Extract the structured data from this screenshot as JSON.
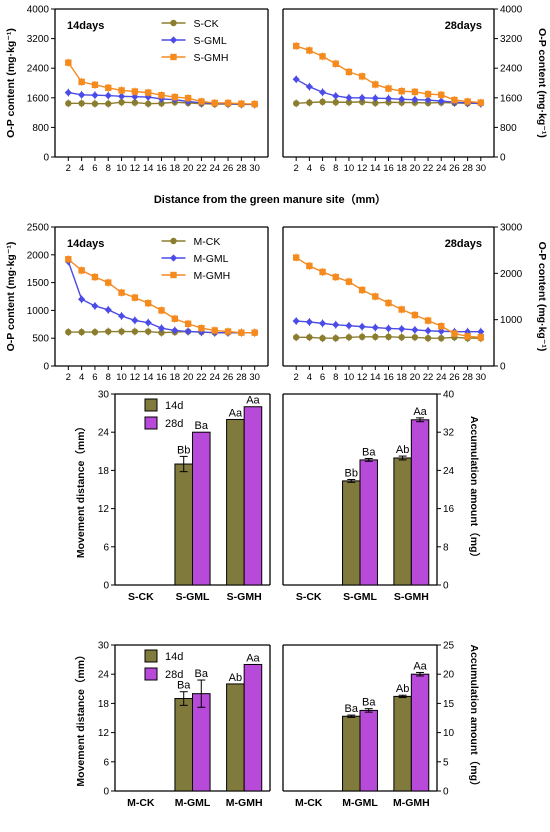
{
  "figure": {
    "shared_xlabel": "Distance from the green manure site（mm）",
    "colors": {
      "ck": "#8b7d2e",
      "gml": "#4b4be8",
      "gmh": "#f58a1e",
      "bar14": "#807a3c",
      "bar28": "#b84ad9"
    }
  },
  "chart_data": [
    {
      "type": "line",
      "id": "line-s14",
      "title": "14days",
      "ylabel": "O-P content (mg·kg⁻¹)",
      "x": [
        2,
        4,
        6,
        8,
        10,
        12,
        14,
        16,
        18,
        20,
        22,
        24,
        26,
        28,
        30
      ],
      "xticks": [
        "2",
        "4",
        "6",
        "8",
        "10",
        "12",
        "14",
        "16",
        "18",
        "20",
        "22",
        "24",
        "26",
        "28",
        "30"
      ],
      "ylim": [
        0,
        4000
      ],
      "yticks": [
        "0",
        "800",
        "1600",
        "2400",
        "3200",
        "4000"
      ],
      "legend": "top-right",
      "series": [
        {
          "name": "S-CK",
          "marker": "circle",
          "values": [
            1450,
            1450,
            1440,
            1440,
            1480,
            1470,
            1440,
            1450,
            1480,
            1460,
            1440,
            1430,
            1430,
            1420,
            1420
          ]
        },
        {
          "name": "S-GML",
          "marker": "diamond",
          "values": [
            1740,
            1680,
            1670,
            1660,
            1640,
            1630,
            1620,
            1570,
            1550,
            1500,
            1460,
            1450,
            1440,
            1430,
            1420
          ]
        },
        {
          "name": "S-GMH",
          "marker": "square",
          "values": [
            2550,
            2030,
            1950,
            1870,
            1800,
            1770,
            1740,
            1670,
            1620,
            1590,
            1500,
            1460,
            1460,
            1440,
            1430
          ]
        }
      ]
    },
    {
      "type": "line",
      "id": "line-s28",
      "title": "28days",
      "ylabel": "O-P content (mg·kg⁻¹)",
      "x": [
        2,
        4,
        6,
        8,
        10,
        12,
        14,
        16,
        18,
        20,
        22,
        24,
        26,
        28,
        30
      ],
      "xticks": [
        "2",
        "4",
        "6",
        "8",
        "10",
        "12",
        "14",
        "16",
        "18",
        "20",
        "22",
        "24",
        "26",
        "28",
        "30"
      ],
      "ylim": [
        0,
        4000
      ],
      "yticks": [
        "0",
        "800",
        "1600",
        "2400",
        "3200",
        "4000"
      ],
      "series": [
        {
          "name": "S-CK",
          "marker": "circle",
          "values": [
            1450,
            1470,
            1490,
            1480,
            1480,
            1490,
            1460,
            1480,
            1470,
            1470,
            1460,
            1470,
            1460,
            1450,
            1450
          ]
        },
        {
          "name": "S-GML",
          "marker": "diamond",
          "values": [
            2100,
            1900,
            1750,
            1650,
            1600,
            1600,
            1590,
            1580,
            1560,
            1550,
            1540,
            1510,
            1480,
            1460,
            1440
          ]
        },
        {
          "name": "S-GMH",
          "marker": "square",
          "values": [
            3000,
            2880,
            2720,
            2520,
            2300,
            2180,
            1960,
            1850,
            1780,
            1760,
            1700,
            1680,
            1540,
            1500,
            1470
          ]
        }
      ]
    },
    {
      "type": "line",
      "id": "line-m14",
      "title": "14days",
      "ylabel": "O-P content (mg·kg⁻¹)",
      "x": [
        2,
        4,
        6,
        8,
        10,
        12,
        14,
        16,
        18,
        20,
        22,
        24,
        26,
        28,
        30
      ],
      "xticks": [
        "2",
        "4",
        "6",
        "8",
        "10",
        "12",
        "14",
        "16",
        "18",
        "20",
        "22",
        "24",
        "26",
        "28",
        "30"
      ],
      "ylim": [
        0,
        2500
      ],
      "yticks": [
        "0",
        "500",
        "1000",
        "1500",
        "2000",
        "2500"
      ],
      "legend": "top-right",
      "series": [
        {
          "name": "M-CK",
          "marker": "circle",
          "values": [
            610,
            610,
            610,
            620,
            620,
            620,
            620,
            600,
            610,
            620,
            610,
            600,
            600,
            600,
            600
          ]
        },
        {
          "name": "M-GML",
          "marker": "diamond",
          "values": [
            1880,
            1200,
            1080,
            1010,
            900,
            820,
            780,
            680,
            640,
            620,
            610,
            600,
            600,
            600,
            600
          ]
        },
        {
          "name": "M-GMH",
          "marker": "square",
          "values": [
            1920,
            1720,
            1600,
            1500,
            1320,
            1230,
            1130,
            1000,
            850,
            760,
            680,
            640,
            620,
            600,
            600
          ]
        }
      ]
    },
    {
      "type": "line",
      "id": "line-m28",
      "title": "28days",
      "ylabel": "O-P content (mg·kg⁻¹)",
      "x": [
        2,
        4,
        6,
        8,
        10,
        12,
        14,
        16,
        18,
        20,
        22,
        24,
        26,
        28,
        30
      ],
      "xticks": [
        "2",
        "4",
        "6",
        "8",
        "10",
        "12",
        "14",
        "16",
        "18",
        "20",
        "22",
        "24",
        "26",
        "28",
        "30"
      ],
      "ylim": [
        0,
        3000
      ],
      "yticks": [
        "0",
        "1000",
        "2000",
        "3000"
      ],
      "series": [
        {
          "name": "M-CK",
          "marker": "circle",
          "values": [
            620,
            620,
            600,
            600,
            620,
            630,
            630,
            630,
            620,
            620,
            600,
            600,
            620,
            600,
            600
          ]
        },
        {
          "name": "M-GML",
          "marker": "diamond",
          "values": [
            970,
            950,
            920,
            890,
            870,
            850,
            830,
            810,
            800,
            780,
            760,
            750,
            740,
            740,
            740
          ]
        },
        {
          "name": "M-GMH",
          "marker": "square",
          "values": [
            2340,
            2160,
            2030,
            1920,
            1820,
            1640,
            1500,
            1360,
            1220,
            1100,
            980,
            860,
            700,
            640,
            620
          ]
        }
      ]
    },
    {
      "type": "bar",
      "id": "bar-s-move",
      "ylabel": "Movement distance（mm）",
      "categories": [
        "S-CK",
        "S-GML",
        "S-GMH"
      ],
      "ylim": [
        0,
        30
      ],
      "yticks": [
        "0",
        "6",
        "12",
        "18",
        "24",
        "30"
      ],
      "legend": "top-left",
      "series": [
        {
          "name": "14d",
          "values": [
            0,
            19,
            26
          ],
          "errors": [
            0,
            1.2,
            0
          ],
          "labels": [
            "",
            "Bb",
            "Aa"
          ]
        },
        {
          "name": "28d",
          "values": [
            0,
            24,
            28
          ],
          "errors": [
            0,
            0,
            0
          ],
          "labels": [
            "",
            "Ba",
            "Aa"
          ]
        }
      ]
    },
    {
      "type": "bar",
      "id": "bar-s-acc",
      "ylabel": "Accumulation amount（mg）",
      "categories": [
        "S-CK",
        "S-GML",
        "S-GMH"
      ],
      "ylim": [
        0,
        40
      ],
      "yticks": [
        "0",
        "8",
        "16",
        "24",
        "32",
        "40"
      ],
      "series": [
        {
          "name": "14d",
          "values": [
            0,
            21.8,
            26.6
          ],
          "errors": [
            0,
            0.3,
            0.4
          ],
          "labels": [
            "",
            "Bb",
            "Ab"
          ]
        },
        {
          "name": "28d",
          "values": [
            0,
            26.2,
            34.6
          ],
          "errors": [
            0,
            0.3,
            0.4
          ],
          "labels": [
            "",
            "Ba",
            "Aa"
          ]
        }
      ]
    },
    {
      "type": "bar",
      "id": "bar-m-move",
      "ylabel": "Movement distance（mm）",
      "categories": [
        "M-CK",
        "M-GML",
        "M-GMH"
      ],
      "ylim": [
        0,
        30
      ],
      "yticks": [
        "0",
        "6",
        "12",
        "18",
        "24",
        "30"
      ],
      "legend": "top-left",
      "series": [
        {
          "name": "14d",
          "values": [
            0,
            19,
            22
          ],
          "errors": [
            0,
            1.4,
            0
          ],
          "labels": [
            "",
            "Ba",
            "Ab"
          ]
        },
        {
          "name": "28d",
          "values": [
            0,
            20,
            26
          ],
          "errors": [
            0,
            2.8,
            0
          ],
          "labels": [
            "",
            "Ba",
            "Aa"
          ]
        }
      ]
    },
    {
      "type": "bar",
      "id": "bar-m-acc",
      "ylabel": "Accumulation amount（mg）",
      "categories": [
        "M-CK",
        "M-GML",
        "M-GMH"
      ],
      "ylim": [
        0,
        25
      ],
      "yticks": [
        "0",
        "5",
        "10",
        "15",
        "20",
        "25"
      ],
      "series": [
        {
          "name": "14d",
          "values": [
            0,
            12.8,
            16.2
          ],
          "errors": [
            0,
            0.2,
            0.2
          ],
          "labels": [
            "",
            "Ba",
            "Ab"
          ]
        },
        {
          "name": "28d",
          "values": [
            0,
            13.8,
            20
          ],
          "errors": [
            0,
            0.3,
            0.3
          ],
          "labels": [
            "",
            "Ba",
            "Aa"
          ]
        }
      ]
    }
  ]
}
